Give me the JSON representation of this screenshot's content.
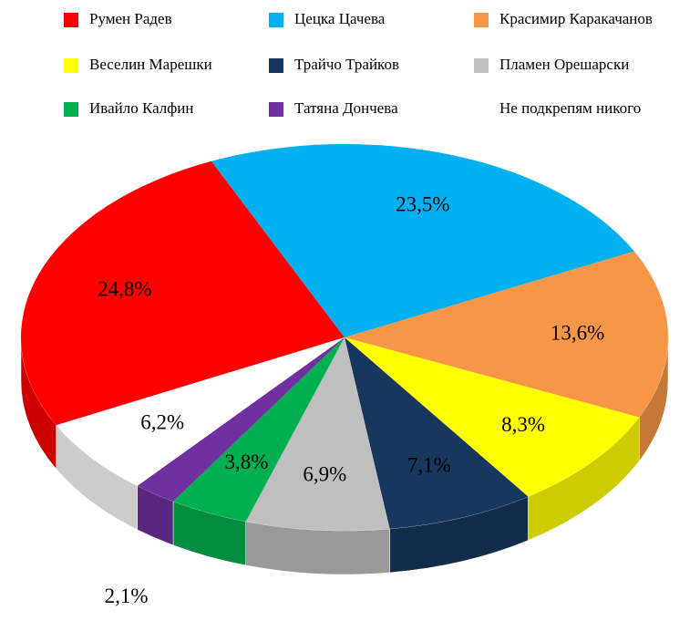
{
  "chart_data": {
    "type": "pie",
    "categories": [
      "Румен Радев",
      "Цецка Цачева",
      "Красимир Каракачанов",
      "Веселин Марешки",
      "Трайчо Трайков",
      "Пламен Орешарски",
      "Ивайло Калфин",
      "Татяна Дончева",
      "Не подкрепям никого"
    ],
    "values": [
      24.8,
      23.5,
      13.6,
      8.3,
      7.1,
      6.9,
      3.8,
      2.1,
      6.2
    ],
    "value_labels": [
      "24,8%",
      "23,5%",
      "13,6%",
      "8,3%",
      "7,1%",
      "6,9%",
      "3,8%",
      "2,1%",
      "6,2%"
    ],
    "colors": [
      "#ff0000",
      "#00b0f0",
      "#f79646",
      "#ffff00",
      "#17375e",
      "#bfbfbf",
      "#00b050",
      "#7030a0",
      "#ffffff"
    ],
    "legend": "top"
  }
}
